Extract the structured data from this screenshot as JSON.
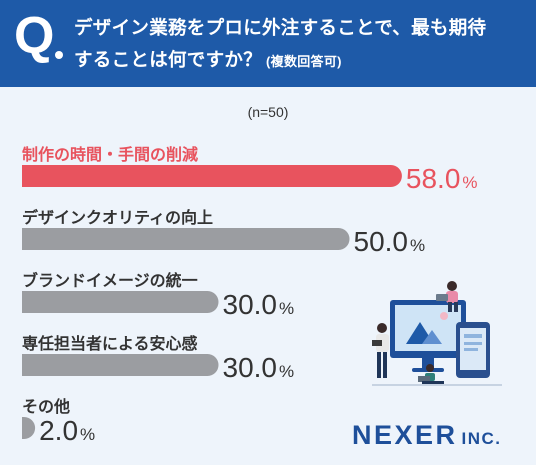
{
  "header": {
    "q_mark": "Q",
    "line1": "デザイン業務をプロに外注することで、最も期待",
    "line2": "することは何ですか？",
    "note": "(複数回答可)"
  },
  "sample_size": "(n=50)",
  "percent_symbol": "%",
  "colors": {
    "header_bg": "#1e5aa8",
    "highlight_bar": "#e8535e",
    "bar": "#9b9da1",
    "highlight_text": "#e8535e",
    "text": "#333333",
    "logo": "#1e4f9a",
    "background": "#eef4fb"
  },
  "chart_data": {
    "type": "bar",
    "orientation": "horizontal",
    "categories": [
      "制作の時間・手間の削減",
      "デザインクオリティの向上",
      "ブランドイメージの統一",
      "専任担当者による安心感",
      "その他"
    ],
    "values": [
      58.0,
      50.0,
      30.0,
      30.0,
      2.0
    ],
    "value_labels": [
      "58.0",
      "50.0",
      "30.0",
      "30.0",
      "2.0"
    ],
    "highlight_index": 0,
    "xlim": [
      0,
      100
    ]
  },
  "logo": {
    "main": "NEXER",
    "suffix": "INC."
  },
  "illustration": {
    "icon": "people-with-devices-illustration"
  }
}
